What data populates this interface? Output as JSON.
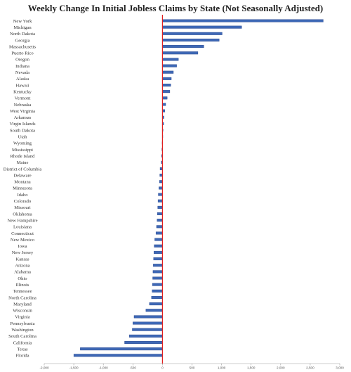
{
  "chart_data": {
    "type": "bar",
    "orientation": "horizontal",
    "title": "Weekly Change In Initial Jobless Claims by State (Not Seasonally Adjusted)",
    "xlabel": "",
    "ylabel": "",
    "xlim": [
      -2000,
      3000
    ],
    "xticks": [
      -2000,
      -1500,
      -1000,
      -500,
      0,
      500,
      1000,
      1500,
      2000,
      2500,
      3000
    ],
    "xtick_labels": [
      "-2,000",
      "-1,500",
      "-1,000",
      "-500",
      "0",
      "500",
      "1,000",
      "1,500",
      "2,000",
      "2,500",
      "3,000"
    ],
    "grid": false,
    "legend": "none",
    "colors": {
      "bar": "#3e68b5",
      "bar_edge": "#23418a",
      "zero_line": "#e02020",
      "axis": "#9a9a9a"
    },
    "categories": [
      "New York",
      "Michigan",
      "North Dakota",
      "Georgia",
      "Massachusetts",
      "Puerto Rico",
      "Oregon",
      "Indiana",
      "Nevada",
      "Alaska",
      "Hawaii",
      "Kentucky",
      "Vermont",
      "Nebraska",
      "West Virginia",
      "Arkansas",
      "Virgin Islands",
      "South Dakota",
      "Utah",
      "Wyoming",
      "Mississippi",
      "Rhode Island",
      "Maine",
      "District of Columbia",
      "Delaware",
      "Montana",
      "Minnesota",
      "Idaho",
      "Colorado",
      "Missouri",
      "Oklahoma",
      "New Hampshire",
      "Louisiana",
      "Connecticut",
      "New Mexico",
      "Iowa",
      "New Jersey",
      "Kansas",
      "Arizona",
      "Alabama",
      "Ohio",
      "Illinois",
      "Tennessee",
      "North Carolina",
      "Maryland",
      "Wisconsin",
      "Virginia",
      "Pennsylvania",
      "Washington",
      "South Carolina",
      "California",
      "Texas",
      "Florida"
    ],
    "values": [
      2720,
      1340,
      1010,
      960,
      700,
      600,
      270,
      240,
      185,
      150,
      140,
      125,
      80,
      55,
      40,
      25,
      20,
      10,
      5,
      -5,
      -10,
      -15,
      -20,
      -40,
      -45,
      -50,
      -60,
      -70,
      -75,
      -80,
      -85,
      -90,
      -100,
      -110,
      -130,
      -140,
      -145,
      -150,
      -155,
      -160,
      -165,
      -170,
      -175,
      -185,
      -220,
      -280,
      -480,
      -500,
      -510,
      -560,
      -640,
      -1390,
      -1500
    ]
  }
}
